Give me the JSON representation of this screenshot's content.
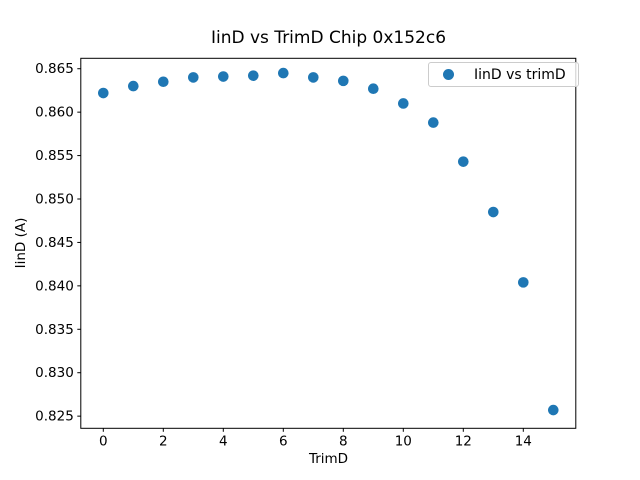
{
  "figure": {
    "background": "#ffffff",
    "text_color": "#000000",
    "spine_color": "#000000",
    "legend_border_color": "#cccccc"
  },
  "chart_data": {
    "type": "scatter",
    "title": "IinD vs TrimD Chip 0x152c6",
    "xlabel": "TrimD",
    "ylabel": "IinD (A)",
    "marker_color": "#1f77b4",
    "grid": false,
    "legend": {
      "label": "IinD vs trimD",
      "position": "upper right"
    },
    "x": [
      0,
      1,
      2,
      3,
      4,
      5,
      6,
      7,
      8,
      9,
      10,
      11,
      12,
      13,
      14,
      15
    ],
    "y": [
      0.8622,
      0.863,
      0.8635,
      0.864,
      0.8641,
      0.8642,
      0.8645,
      0.864,
      0.8636,
      0.8627,
      0.861,
      0.8588,
      0.8543,
      0.8485,
      0.8404,
      0.8257
    ],
    "xlim": [
      -0.75,
      15.75
    ],
    "ylim": [
      0.8236,
      0.8662
    ],
    "xticks": {
      "values": [
        0,
        2,
        4,
        6,
        8,
        10,
        12,
        14
      ],
      "labels": [
        "0",
        "2",
        "4",
        "6",
        "8",
        "10",
        "12",
        "14"
      ]
    },
    "yticks": {
      "values": [
        0.825,
        0.83,
        0.835,
        0.84,
        0.845,
        0.85,
        0.855,
        0.86,
        0.865
      ],
      "labels": [
        "0.825",
        "0.830",
        "0.835",
        "0.840",
        "0.845",
        "0.850",
        "0.855",
        "0.860",
        "0.865"
      ]
    }
  }
}
